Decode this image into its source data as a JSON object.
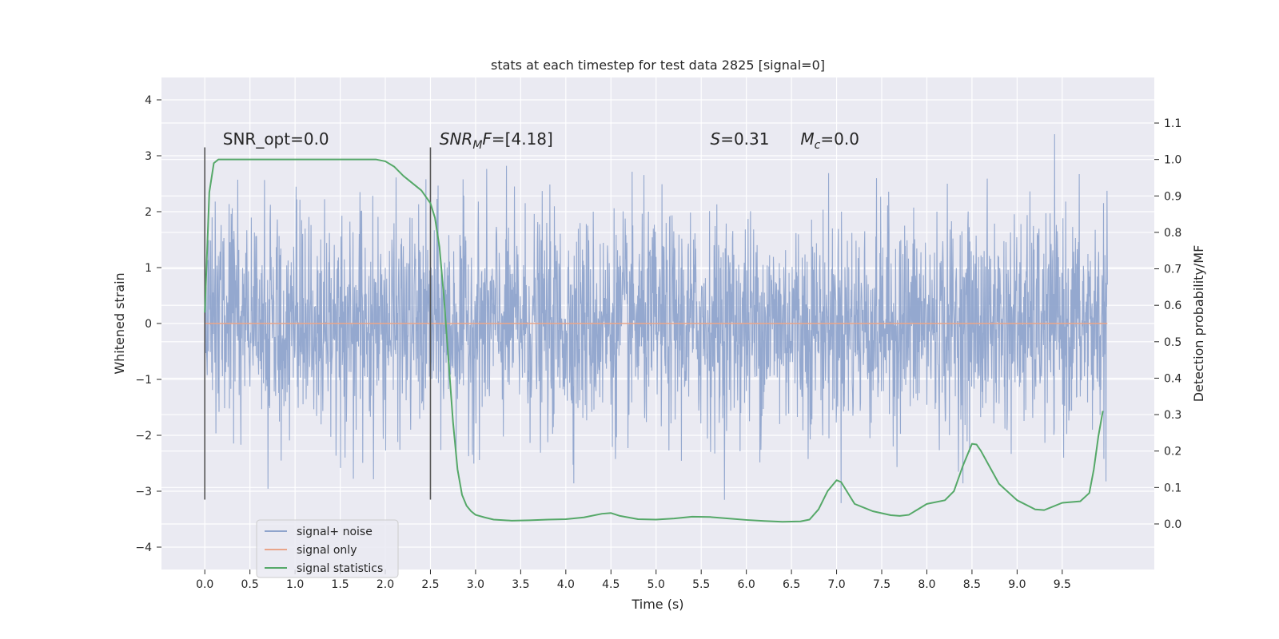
{
  "chart_data": {
    "type": "line",
    "title": "stats at each timestep for test data 2825 [signal=0]",
    "xlabel": "Time (s)",
    "ylabel": "Whitened strain",
    "y2label": "Detection probability/MF",
    "xlim": [
      -0.48,
      10.52
    ],
    "ylim": [
      -4.4,
      4.4
    ],
    "y2lim": [
      -0.125,
      1.225
    ],
    "xticks": [
      0.0,
      0.5,
      1.0,
      1.5,
      2.0,
      2.5,
      3.0,
      3.5,
      4.0,
      4.5,
      5.0,
      5.5,
      6.0,
      6.5,
      7.0,
      7.5,
      8.0,
      8.5,
      9.0,
      9.5
    ],
    "xtick_labels": [
      "0.0",
      "0.5",
      "1.0",
      "1.5",
      "2.0",
      "2.5",
      "3.0",
      "3.5",
      "4.0",
      "4.5",
      "5.0",
      "5.5",
      "6.0",
      "6.5",
      "7.0",
      "7.5",
      "8.0",
      "8.5",
      "9.0",
      "9.5"
    ],
    "yticks": [
      4,
      3,
      2,
      1,
      0,
      -1,
      -2,
      -3,
      -4
    ],
    "ytick_labels": [
      "4",
      "3",
      "2",
      "1",
      "0",
      "−1",
      "−2",
      "−3",
      "−4"
    ],
    "y2ticks": [
      1.1,
      1.0,
      0.9,
      0.8,
      0.7,
      0.6,
      0.5,
      0.4,
      0.3,
      0.2,
      0.1,
      0.0
    ],
    "y2tick_labels": [
      "1.1",
      "1.0",
      "0.9",
      "0.8",
      "0.7",
      "0.6",
      "0.5",
      "0.4",
      "0.3",
      "0.2",
      "0.1",
      "0.0"
    ],
    "grid": true,
    "legend_position": "lower-left",
    "series": [
      {
        "name": "signal+ noise",
        "color": "#8fa4cc",
        "axis": "left",
        "style": "noise",
        "x_range": [
          0.0,
          10.0
        ]
      },
      {
        "name": "signal only",
        "color": "#e9a58a",
        "axis": "left",
        "x": [
          0.0,
          10.0
        ],
        "values": [
          0.0,
          0.0
        ]
      },
      {
        "name": "signal statistics",
        "color": "#55a868",
        "axis": "right",
        "x": [
          0.0,
          0.05,
          0.1,
          0.15,
          0.25,
          0.5,
          1.0,
          1.5,
          1.9,
          2.0,
          2.1,
          2.2,
          2.3,
          2.4,
          2.5,
          2.55,
          2.6,
          2.65,
          2.7,
          2.75,
          2.8,
          2.85,
          2.9,
          2.95,
          3.0,
          3.1,
          3.2,
          3.4,
          3.6,
          3.8,
          4.0,
          4.2,
          4.4,
          4.5,
          4.6,
          4.8,
          5.0,
          5.2,
          5.4,
          5.6,
          5.8,
          6.0,
          6.2,
          6.4,
          6.6,
          6.7,
          6.8,
          6.9,
          7.0,
          7.05,
          7.1,
          7.2,
          7.4,
          7.6,
          7.7,
          7.8,
          7.9,
          8.0,
          8.2,
          8.3,
          8.4,
          8.5,
          8.55,
          8.6,
          8.7,
          8.8,
          9.0,
          9.2,
          9.3,
          9.5,
          9.7,
          9.8,
          9.85,
          9.9,
          9.95
        ],
        "values": [
          0.58,
          0.91,
          0.99,
          1.0,
          1.0,
          1.0,
          1.0,
          1.0,
          1.0,
          0.995,
          0.98,
          0.955,
          0.935,
          0.915,
          0.88,
          0.84,
          0.76,
          0.62,
          0.45,
          0.28,
          0.15,
          0.08,
          0.05,
          0.035,
          0.025,
          0.018,
          0.012,
          0.009,
          0.01,
          0.012,
          0.013,
          0.018,
          0.028,
          0.03,
          0.022,
          0.013,
          0.012,
          0.015,
          0.02,
          0.019,
          0.015,
          0.011,
          0.008,
          0.006,
          0.007,
          0.012,
          0.04,
          0.09,
          0.12,
          0.115,
          0.095,
          0.055,
          0.035,
          0.024,
          0.022,
          0.025,
          0.04,
          0.055,
          0.065,
          0.09,
          0.16,
          0.22,
          0.218,
          0.2,
          0.155,
          0.11,
          0.065,
          0.04,
          0.038,
          0.058,
          0.062,
          0.085,
          0.15,
          0.24,
          0.31
        ]
      }
    ],
    "vlines": [
      {
        "x": 0.0,
        "y_range": [
          -3.15,
          3.15
        ],
        "color": "#555555"
      },
      {
        "x": 2.5,
        "y_range": [
          -3.15,
          3.15
        ],
        "color": "#555555"
      }
    ],
    "annotations": [
      {
        "main": "SNR_opt=0.0",
        "x": 0.2,
        "y": 3.2
      },
      {
        "italic": "SNR",
        "sub": "M",
        "italic2": "F",
        "rest": "=[4.18]",
        "x": 2.6,
        "y": 3.2
      },
      {
        "italic": "S",
        "rest": "=0.31",
        "x": 5.6,
        "y": 3.2
      },
      {
        "italic": "M",
        "sub": "c",
        "rest": "=0.0",
        "x": 6.6,
        "y": 3.2
      }
    ]
  }
}
